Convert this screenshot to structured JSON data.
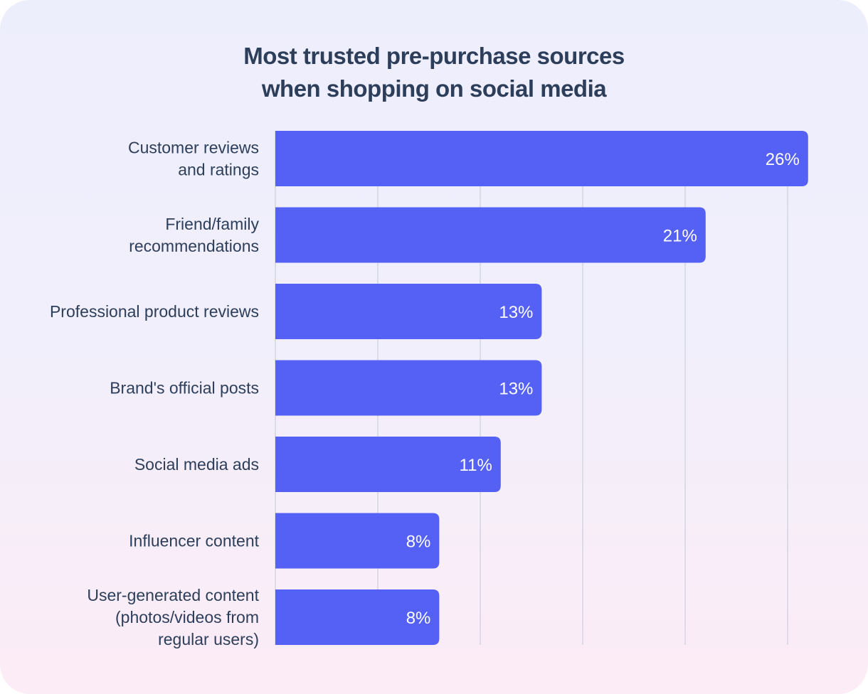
{
  "chart_data": {
    "type": "bar",
    "orientation": "horizontal",
    "title": "Most trusted pre-purchase sources when shopping on social media",
    "title_lines": [
      "Most trusted pre-purchase sources",
      "when shopping on social media"
    ],
    "categories": [
      [
        "Customer reviews",
        "and ratings"
      ],
      [
        "Friend/family",
        "recommendations"
      ],
      [
        "Professional product reviews"
      ],
      [
        "Brand's official posts"
      ],
      [
        "Social media ads"
      ],
      [
        "Influencer content"
      ],
      [
        "User-generated content",
        "(photos/videos from",
        "regular users)"
      ]
    ],
    "values": [
      26,
      21,
      13,
      13,
      11,
      8,
      8
    ],
    "value_labels": [
      "26%",
      "21%",
      "13%",
      "13%",
      "11%",
      "8%",
      "8%"
    ],
    "unit": "%",
    "xlim": [
      0,
      26
    ],
    "gridlines": [
      5,
      10,
      15,
      20,
      25
    ],
    "grid": true,
    "legend": "none",
    "colors": {
      "bar": "#5461f4",
      "text": "#2d3e5a",
      "grid": "#d3d5e0"
    }
  }
}
